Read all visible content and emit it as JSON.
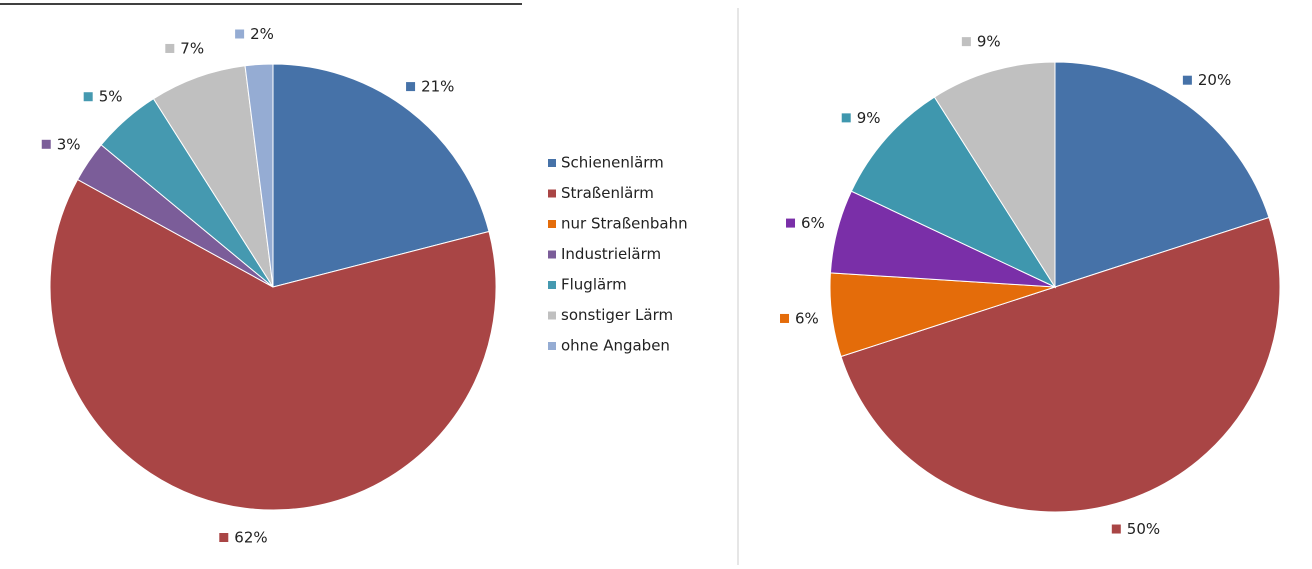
{
  "legend": [
    "Schienenlärm",
    "Straßenlärm",
    "nur Straßenbahn",
    "Industrielärm",
    "Fluglärm",
    "sonstiger Lärm",
    "ohne Angaben"
  ],
  "legend_colors": [
    "#4672a8",
    "#a94545",
    "#e46c0a",
    "#7b5d99",
    "#4599b0",
    "#c0c0c0",
    "#95acd3"
  ],
  "chart_data": [
    {
      "type": "pie",
      "values": [
        21,
        62,
        null,
        3,
        5,
        7,
        2
      ],
      "colors": [
        "#4672a8",
        "#a94545",
        "#e46c0a",
        "#7b5d99",
        "#4599b0",
        "#c0c0c0",
        "#95acd3"
      ],
      "value_labels": [
        "21%",
        "62%",
        null,
        "3%",
        "5%",
        "7%",
        "2%"
      ]
    },
    {
      "type": "pie",
      "values": [
        20,
        50,
        6,
        6,
        9,
        9,
        null
      ],
      "colors": [
        "#4672a8",
        "#a94545",
        "#e46c0a",
        "#7a2fa8",
        "#3f97ae",
        "#c0c0c0",
        "#95acd3"
      ],
      "value_labels": [
        "20%",
        "50%",
        "6%",
        "6%",
        "9%",
        "9%",
        null
      ]
    }
  ]
}
